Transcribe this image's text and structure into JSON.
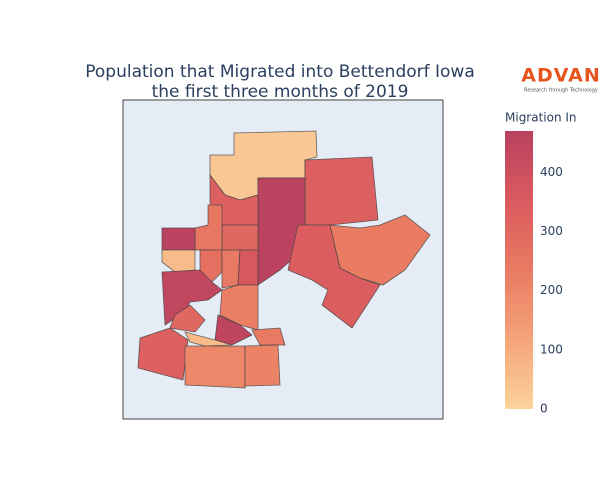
{
  "chart_data": {
    "type": "choropleth",
    "title": [
      "Population that Migrated into Bettendorf Iowa",
      "the first three months of 2019"
    ],
    "colorbar_title": "Migration In",
    "colorscale": [
      "#fbd39b",
      "#f5a47a",
      "#e97a62",
      "#da5a5f",
      "#b9415f"
    ],
    "clim": [
      0,
      470
    ],
    "cticks": [
      0,
      100,
      200,
      300,
      400
    ],
    "values": [
      30,
      330,
      460,
      340,
      230,
      330,
      300,
      250,
      460,
      60,
      270,
      240,
      360,
      440,
      220,
      300,
      450,
      60,
      240,
      330,
      200,
      210
    ],
    "logo": {
      "name": "ADVAN",
      "tagline": "Research through Technology"
    }
  }
}
